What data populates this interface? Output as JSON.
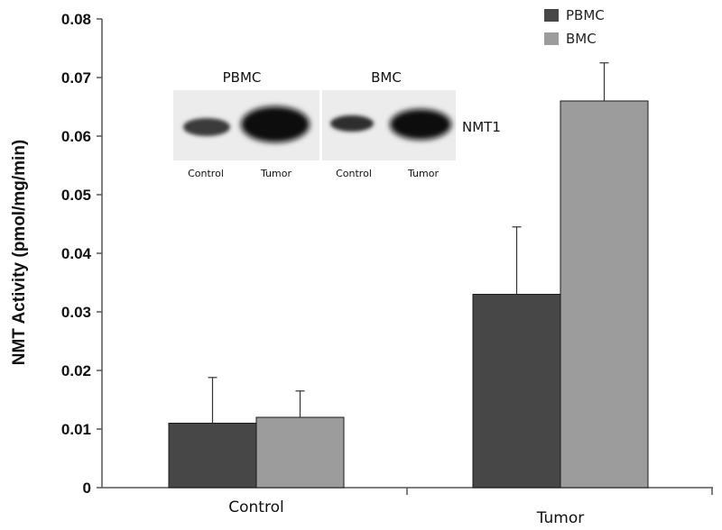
{
  "chart_data": {
    "type": "bar",
    "categories": [
      "Control",
      "Tumor"
    ],
    "series": [
      {
        "name": "PBMC",
        "values": [
          0.011,
          0.033
        ],
        "errors": [
          0.0078,
          0.0115
        ],
        "color": "#474747"
      },
      {
        "name": "BMC",
        "values": [
          0.012,
          0.066
        ],
        "errors": [
          0.0045,
          0.0065
        ],
        "color": "#9c9c9c"
      }
    ],
    "title": "",
    "xlabel": "",
    "ylabel": "NMT Activity (pmol/mg/min)",
    "ylim": [
      0,
      0.08
    ],
    "yticks": [
      "0",
      "0.01",
      "0.02",
      "0.03",
      "0.04",
      "0.05",
      "0.06",
      "0.07",
      "0.08"
    ],
    "grid": false,
    "legend_position": "top-right"
  },
  "inset": {
    "panels": [
      {
        "title": "PBMC",
        "lanes": [
          "Control",
          "Tumor"
        ]
      },
      {
        "title": "BMC",
        "lanes": [
          "Control",
          "Tumor"
        ]
      }
    ],
    "protein_label": "NMT1"
  }
}
